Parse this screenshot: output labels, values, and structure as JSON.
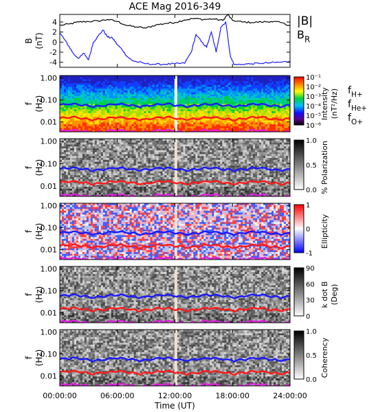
{
  "chart_data": {
    "title": "ACE Mag 2016-349",
    "xlabel": "Time (UT)",
    "x_ticks": [
      "00:00:00",
      "06:00:00",
      "12:00:00",
      "18:00:00",
      "24:00:00"
    ],
    "xlim_hours": [
      0,
      24
    ],
    "panels": [
      {
        "id": "b-field",
        "type": "line",
        "ylabel": "B",
        "yunit": "(nT)",
        "ylim": [
          -5,
          5.5
        ],
        "y_ticks": [
          "4",
          "2",
          "0",
          "-2",
          "-4"
        ],
        "y_tick_values": [
          4,
          2,
          0,
          -2,
          -4
        ],
        "series": [
          {
            "name": "|B|",
            "color": "#000000",
            "x": [
              0,
              1,
              2,
              3,
              4,
              5,
              6,
              7,
              8,
              9,
              10,
              11,
              12,
              13,
              14,
              15,
              16,
              17,
              17.5,
              18,
              19,
              20,
              21,
              22,
              23,
              24
            ],
            "values": [
              3.3,
              3.6,
              4.0,
              4.1,
              4.2,
              4.5,
              4.1,
              3.3,
              3.0,
              2.8,
              3.4,
              3.7,
              3.9,
              4.4,
              4.7,
              4.5,
              4.6,
              4.3,
              5.5,
              4.3,
              4.0,
              3.9,
              4.0,
              4.1,
              3.9,
              3.3
            ]
          },
          {
            "name": "B",
            "subscript": "R",
            "color": "#1a1aff",
            "x": [
              0,
              0.5,
              1,
              1.5,
              2,
              2.5,
              3,
              3.5,
              4,
              4.5,
              5,
              5.5,
              6,
              6.5,
              7,
              7.5,
              8,
              9,
              10,
              11,
              12,
              13,
              13.7,
              14.2,
              14.8,
              15.3,
              15.8,
              16.3,
              16.8,
              17.3,
              17.8,
              18.2,
              19,
              20,
              21,
              22,
              23,
              24
            ],
            "values": [
              1.8,
              0.5,
              -1.0,
              -2.5,
              -3.2,
              -2.2,
              -3.5,
              0.0,
              1.2,
              2.4,
              1.0,
              0.8,
              -0.5,
              -1.5,
              -2.8,
              -3.6,
              -3.9,
              -4.3,
              -4.4,
              -4.4,
              -4.3,
              -4.2,
              -2.0,
              1.5,
              0.0,
              -1.0,
              2.0,
              -2.0,
              3.0,
              4.0,
              -3.0,
              -4.5,
              -4.4,
              -4.3,
              -4.2,
              -4.1,
              -4.0,
              -3.8
            ]
          }
        ]
      },
      {
        "id": "intensity",
        "type": "heatmap",
        "ylabel": "f",
        "yunit": "(Hz)",
        "yscale": "log",
        "ylim": [
          0.0035,
          1.3
        ],
        "y_ticks": [
          "1.00",
          "0.10",
          "0.01"
        ],
        "y_tick_values": [
          1,
          0.1,
          0.01
        ],
        "colorbar_label": "Intensity",
        "colorbar_unit": "(nT²/Hz)",
        "colorbar_ticks": [
          "10⁻¹",
          "10⁻²",
          "10⁻³",
          "10⁻⁴",
          "10⁻⁵",
          "10⁻⁶"
        ],
        "colormap": "rainbow"
      },
      {
        "id": "polarization",
        "type": "heatmap",
        "ylabel": "f",
        "yunit": "(Hz)",
        "yscale": "log",
        "ylim": [
          0.0035,
          1.3
        ],
        "y_ticks": [
          "1.00",
          "0.10",
          "0.01"
        ],
        "y_tick_values": [
          1,
          0.1,
          0.01
        ],
        "colorbar_label": "% Polarization",
        "colorbar_ticks": [
          "1.0",
          "0.5",
          "0.0"
        ],
        "colormap": "gray"
      },
      {
        "id": "ellipticity",
        "type": "heatmap",
        "ylabel": "f",
        "yunit": "(Hz)",
        "yscale": "log",
        "ylim": [
          0.0035,
          1.3
        ],
        "y_ticks": [
          "1.00",
          "0.10",
          "0.01"
        ],
        "y_tick_values": [
          1,
          0.1,
          0.01
        ],
        "colorbar_label": "Ellipticity",
        "colorbar_ticks": [
          "1",
          "0",
          "-1"
        ],
        "colormap": "bluewhitered"
      },
      {
        "id": "kdotb",
        "type": "heatmap",
        "ylabel": "f",
        "yunit": "(Hz)",
        "yscale": "log",
        "ylim": [
          0.0035,
          1.3
        ],
        "y_ticks": [
          "1.00",
          "0.10",
          "0.01"
        ],
        "y_tick_values": [
          1,
          0.1,
          0.01
        ],
        "colorbar_label": "k dot B",
        "colorbar_unit": "(Deg)",
        "colorbar_ticks": [
          "90",
          "60",
          "30",
          "0"
        ],
        "colormap": "gray"
      },
      {
        "id": "coherency",
        "type": "heatmap",
        "ylabel": "f",
        "yunit": "(Hz)",
        "yscale": "log",
        "ylim": [
          0.0035,
          1.3
        ],
        "y_ticks": [
          "1.00",
          "0.10",
          "0.01"
        ],
        "y_tick_values": [
          1,
          0.1,
          0.01
        ],
        "colorbar_label": "Coherency",
        "colorbar_ticks": [
          "1.0",
          "0.5",
          "0.0"
        ],
        "colormap": "gray"
      }
    ],
    "gyrofrequency_lines": [
      {
        "name": "f",
        "subscript": "H+",
        "color": "#1a1aff",
        "level_hz": 0.058
      },
      {
        "name": "f",
        "subscript": "He+",
        "color": "#ff1a1a",
        "level_hz": 0.0145
      },
      {
        "name": "f",
        "subscript": "O+",
        "color": "#e020e0",
        "level_hz": 0.0037
      }
    ],
    "data_gap_hours": 12.1
  }
}
